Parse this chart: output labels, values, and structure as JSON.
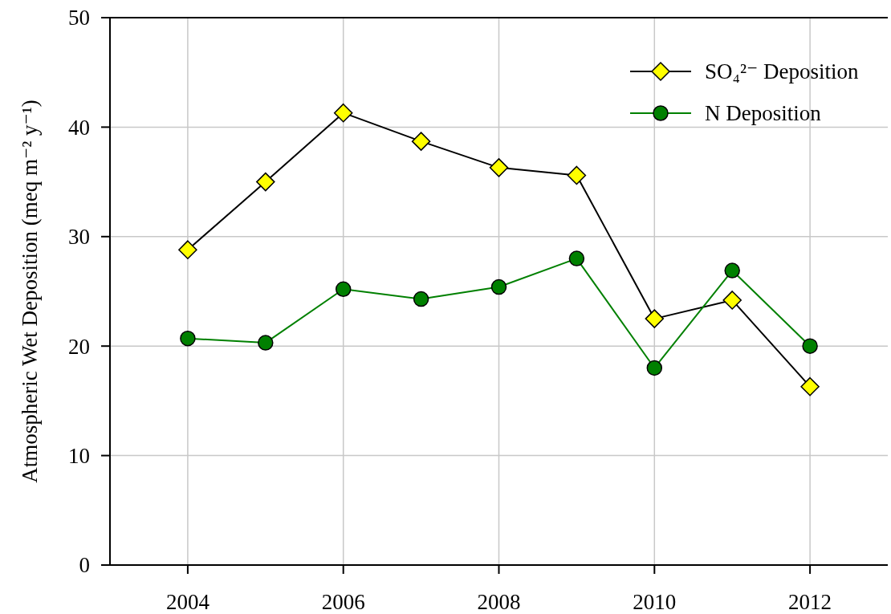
{
  "chart_data": {
    "type": "line",
    "ylabel": "Atmospheric Wet Deposition (meq m⁻² y⁻¹)",
    "x": [
      2004,
      2005,
      2006,
      2007,
      2008,
      2009,
      2010,
      2011,
      2012
    ],
    "series": [
      {
        "name": "SO₄²⁻ Deposition",
        "color": "#000000",
        "colors": [
          "#ffff00",
          "#ffff00",
          "#ffff00",
          "#ffff00",
          "#ffff00",
          "#ffff00",
          "#ffff00",
          "#ffff00",
          "#ffff00"
        ],
        "marker": "diamond",
        "values": [
          28.8,
          35.0,
          41.3,
          38.7,
          36.3,
          35.6,
          22.5,
          24.2,
          16.3
        ]
      },
      {
        "name": "N Deposition",
        "color": "#008000",
        "colors": [
          "#008000",
          "#008000",
          "#008000",
          "#008000",
          "#008000",
          "#008000",
          "#008000",
          "#008000",
          "#008000"
        ],
        "marker": "circle",
        "values": [
          20.7,
          20.3,
          25.2,
          24.3,
          25.4,
          28.0,
          18.0,
          26.9,
          20.0
        ]
      }
    ],
    "xlim": [
      2003,
      2013
    ],
    "xticks": [
      2004,
      2006,
      2008,
      2010,
      2012
    ],
    "ylim": [
      0,
      50
    ],
    "yticks": [
      0,
      10,
      20,
      30,
      40,
      50
    ],
    "grid": true,
    "legend": "top right"
  }
}
